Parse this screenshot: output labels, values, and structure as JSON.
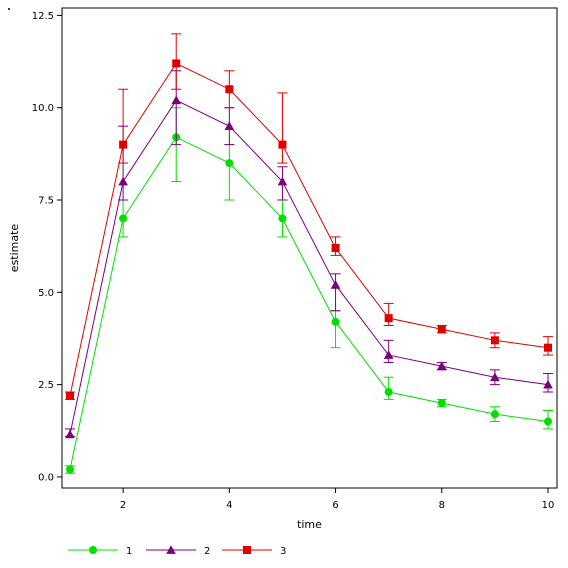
{
  "chart_data": {
    "type": "line",
    "title": "",
    "xlabel": "time",
    "ylabel": "estimate",
    "xlim": [
      1,
      10
    ],
    "ylim": [
      -0.3,
      12.7
    ],
    "x_ticks": [
      2,
      4,
      6,
      8,
      10
    ],
    "y_ticks": [
      0,
      2.5,
      5,
      7.5,
      10,
      12.5
    ],
    "x_tick_labels": [
      "2",
      "4",
      "6",
      "8",
      "10"
    ],
    "y_tick_labels": [
      "0.0",
      "2.5",
      "5.0",
      "7.5",
      "10.0",
      "12.5"
    ],
    "grid": false,
    "legend_position": "bottom-left",
    "x": [
      1,
      2,
      3,
      4,
      5,
      6,
      7,
      8,
      9,
      10
    ],
    "series": [
      {
        "name": "1",
        "color": "#00e000",
        "marker": "circle",
        "values": [
          0.2,
          7.0,
          9.2,
          8.5,
          7.0,
          4.2,
          2.3,
          2.0,
          1.7,
          1.5
        ],
        "lower": [
          0.1,
          6.5,
          8.0,
          7.5,
          6.5,
          3.5,
          2.1,
          1.9,
          1.5,
          1.3
        ],
        "upper": [
          0.3,
          7.5,
          10.0,
          9.0,
          7.5,
          4.5,
          2.7,
          2.1,
          1.9,
          1.8
        ]
      },
      {
        "name": "2",
        "color": "#7b007b",
        "marker": "triangle",
        "values": [
          1.15,
          8.0,
          10.2,
          9.5,
          8.0,
          5.2,
          3.3,
          3.0,
          2.7,
          2.5
        ],
        "lower": [
          1.1,
          7.5,
          9.0,
          9.0,
          7.5,
          4.5,
          3.1,
          2.9,
          2.5,
          2.3
        ],
        "upper": [
          1.3,
          9.5,
          11.0,
          10.0,
          8.4,
          5.5,
          3.7,
          3.1,
          2.9,
          2.8
        ]
      },
      {
        "name": "3",
        "color": "#e00000",
        "marker": "square",
        "values": [
          2.2,
          9.0,
          11.2,
          10.5,
          9.0,
          6.2,
          4.3,
          4.0,
          3.7,
          3.5
        ],
        "lower": [
          2.1,
          8.5,
          10.5,
          10.0,
          8.5,
          6.0,
          4.1,
          3.9,
          3.5,
          3.3
        ],
        "upper": [
          2.3,
          10.5,
          12.0,
          11.0,
          10.4,
          6.5,
          4.7,
          4.1,
          3.9,
          3.8
        ]
      }
    ]
  }
}
